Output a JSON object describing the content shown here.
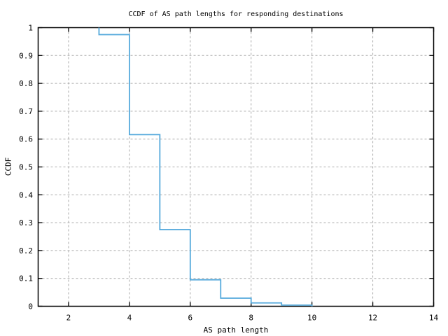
{
  "chart_data": {
    "type": "line",
    "subtype": "ccdf-step",
    "title": "CCDF of AS path lengths for responding destinations",
    "xlabel": "AS path length",
    "ylabel": "CCDF",
    "xlim": [
      1,
      14
    ],
    "ylim": [
      0,
      1
    ],
    "grid": "dashed",
    "legend": "none",
    "axis_color": "#000000",
    "grid_color": "#aaaaaa",
    "background_color": "#ffffff",
    "xticks": [
      {
        "value": 2,
        "label": "2"
      },
      {
        "value": 4,
        "label": "4"
      },
      {
        "value": 6,
        "label": "6"
      },
      {
        "value": 8,
        "label": "8"
      },
      {
        "value": 10,
        "label": "10"
      },
      {
        "value": 12,
        "label": "12"
      },
      {
        "value": 14,
        "label": "14"
      }
    ],
    "yticks": [
      {
        "value": 0,
        "label": "0"
      },
      {
        "value": 0.1,
        "label": "0.1"
      },
      {
        "value": 0.2,
        "label": "0.2"
      },
      {
        "value": 0.3,
        "label": "0.3"
      },
      {
        "value": 0.4,
        "label": "0.4"
      },
      {
        "value": 0.5,
        "label": "0.5"
      },
      {
        "value": 0.6,
        "label": "0.6"
      },
      {
        "value": 0.7,
        "label": "0.7"
      },
      {
        "value": 0.8,
        "label": "0.8"
      },
      {
        "value": 0.9,
        "label": "0.9"
      },
      {
        "value": 1,
        "label": "1"
      }
    ],
    "series": [
      {
        "name": "ccdf-as-path-length",
        "color": "#56aadc",
        "start": [
          3,
          1.0
        ],
        "steps": [
          [
            3,
            0.975
          ],
          [
            4,
            0.616
          ],
          [
            5,
            0.275
          ],
          [
            6,
            0.095
          ],
          [
            7,
            0.029
          ],
          [
            8,
            0.012
          ],
          [
            9,
            0.004
          ],
          [
            10,
            0.0
          ]
        ]
      }
    ]
  }
}
